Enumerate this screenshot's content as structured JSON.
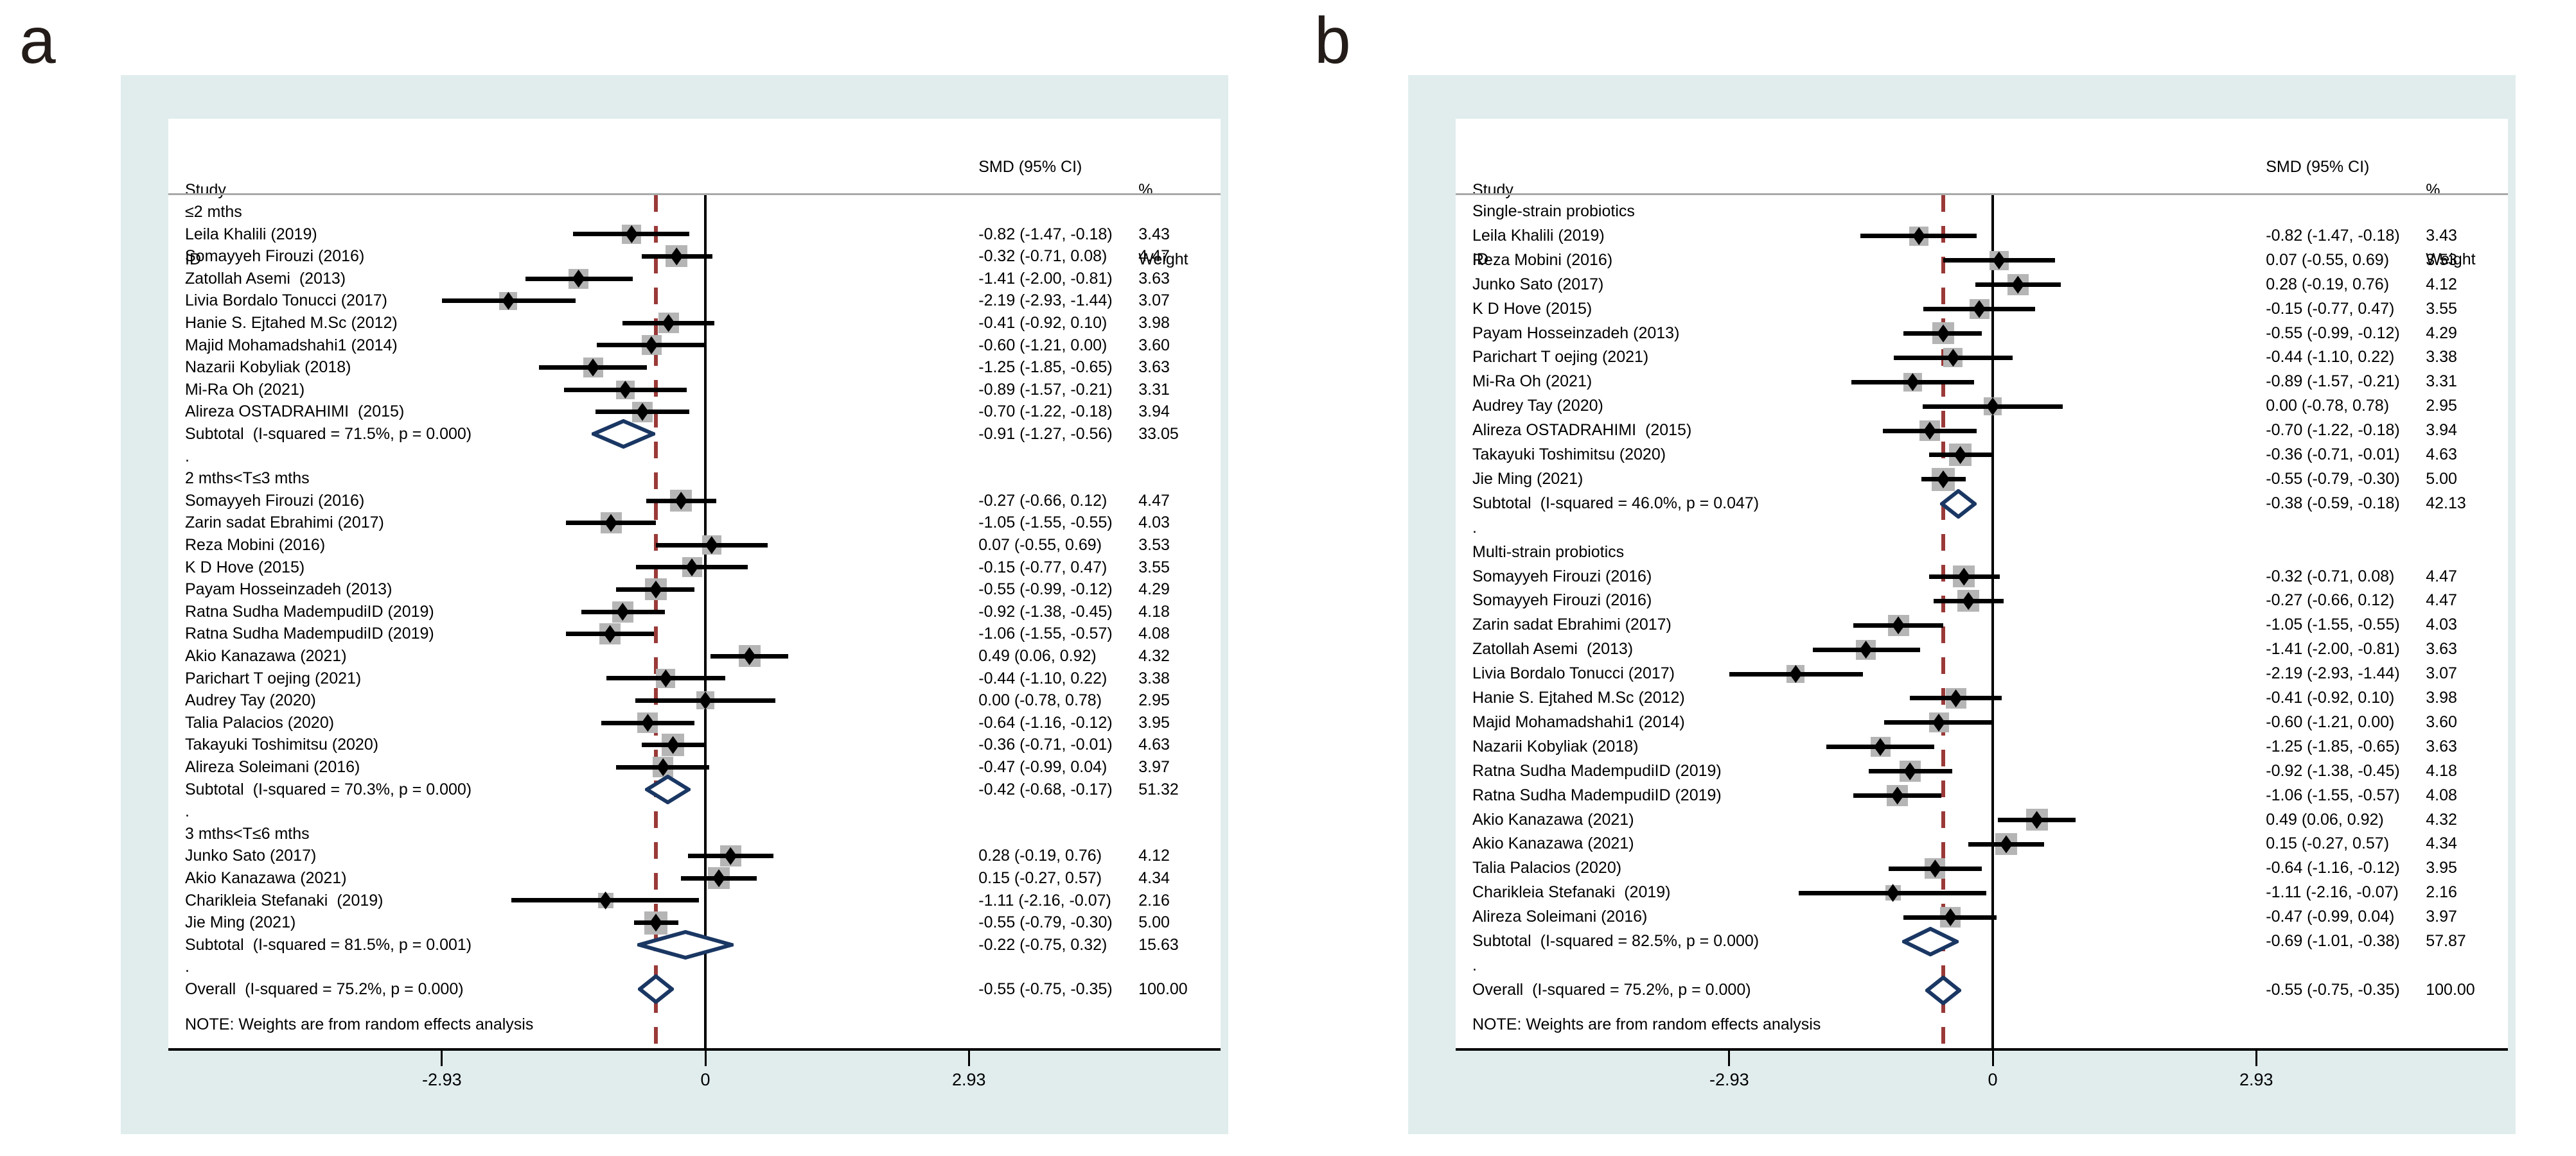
{
  "page": {
    "label_a": "a",
    "label_b": "b"
  },
  "colors": {
    "panel_background": "#e1eded",
    "plot_background": "#ffffff",
    "weight_box_gray": "#b5b5b5",
    "header_rule_gray": "#a9a9a9",
    "dashed_overall_line_red": "#9a3a38",
    "pooled_diamond_navy": "#1a3763",
    "text_black": "#000000"
  },
  "chart_data": {
    "type": "forest",
    "effect_measure": "SMD",
    "note": "NOTE: Weights are from random effects analysis",
    "columns": {
      "study_top": "Study",
      "study_bottom": "ID",
      "smd": "SMD (95% CI)",
      "weight_top": "%",
      "weight_bottom": "Weight"
    },
    "axis": {
      "ticks": [
        {
          "value": -2.93,
          "label": "-2.93"
        },
        {
          "value": 0,
          "label": "0"
        },
        {
          "value": 2.93,
          "label": "2.93"
        }
      ],
      "zero_line_at": 0,
      "dashed_line_at": -0.55
    },
    "panels": [
      {
        "id": "a",
        "rows": [
          {
            "type": "group",
            "label": "≤2 mths"
          },
          {
            "type": "study",
            "label": "Leila Khalili (2019)",
            "est": -0.82,
            "lo": -1.47,
            "hi": -0.18,
            "smd": "-0.82 (-1.47, -0.18)",
            "weight": "3.43",
            "w": 3.43
          },
          {
            "type": "study",
            "label": "Somayyeh Firouzi (2016)",
            "est": -0.32,
            "lo": -0.71,
            "hi": 0.08,
            "smd": "-0.32 (-0.71, 0.08)",
            "weight": "4.47",
            "w": 4.47
          },
          {
            "type": "study",
            "label": "Zatollah Asemi  (2013)",
            "est": -1.41,
            "lo": -2.0,
            "hi": -0.81,
            "smd": "-1.41 (-2.00, -0.81)",
            "weight": "3.63",
            "w": 3.63
          },
          {
            "type": "study",
            "label": "Livia Bordalo Tonucci (2017)",
            "est": -2.19,
            "lo": -2.93,
            "hi": -1.44,
            "smd": "-2.19 (-2.93, -1.44)",
            "weight": "3.07",
            "w": 3.07
          },
          {
            "type": "study",
            "label": "Hanie S. Ejtahed M.Sc (2012)",
            "est": -0.41,
            "lo": -0.92,
            "hi": 0.1,
            "smd": "-0.41 (-0.92, 0.10)",
            "weight": "3.98",
            "w": 3.98
          },
          {
            "type": "study",
            "label": "Majid Mohamadshahi1 (2014)",
            "est": -0.6,
            "lo": -1.21,
            "hi": 0.0,
            "smd": "-0.60 (-1.21, 0.00)",
            "weight": "3.60",
            "w": 3.6
          },
          {
            "type": "study",
            "label": "Nazarii Kobyliak (2018)",
            "est": -1.25,
            "lo": -1.85,
            "hi": -0.65,
            "smd": "-1.25 (-1.85, -0.65)",
            "weight": "3.63",
            "w": 3.63
          },
          {
            "type": "study",
            "label": "Mi-Ra Oh (2021)",
            "est": -0.89,
            "lo": -1.57,
            "hi": -0.21,
            "smd": "-0.89 (-1.57, -0.21)",
            "weight": "3.31",
            "w": 3.31
          },
          {
            "type": "study",
            "label": "Alireza OSTADRAHIMI  (2015)",
            "est": -0.7,
            "lo": -1.22,
            "hi": -0.18,
            "smd": "-0.70 (-1.22, -0.18)",
            "weight": "3.94",
            "w": 3.94
          },
          {
            "type": "subtotal",
            "label": "Subtotal  (I-squared = 71.5%, p = 0.000)",
            "est": -0.91,
            "lo": -1.27,
            "hi": -0.56,
            "smd": "-0.91 (-1.27, -0.56)",
            "weight": "33.05"
          },
          {
            "type": "dot"
          },
          {
            "type": "group",
            "label": "2 mths<T≤3 mths"
          },
          {
            "type": "study",
            "label": "Somayyeh Firouzi (2016)",
            "est": -0.27,
            "lo": -0.66,
            "hi": 0.12,
            "smd": "-0.27 (-0.66, 0.12)",
            "weight": "4.47",
            "w": 4.47
          },
          {
            "type": "study",
            "label": "Zarin sadat Ebrahimi (2017)",
            "est": -1.05,
            "lo": -1.55,
            "hi": -0.55,
            "smd": "-1.05 (-1.55, -0.55)",
            "weight": "4.03",
            "w": 4.03
          },
          {
            "type": "study",
            "label": "Reza Mobini (2016)",
            "est": 0.07,
            "lo": -0.55,
            "hi": 0.69,
            "smd": "0.07 (-0.55, 0.69)",
            "weight": "3.53",
            "w": 3.53
          },
          {
            "type": "study",
            "label": "K D Hove (2015)",
            "est": -0.15,
            "lo": -0.77,
            "hi": 0.47,
            "smd": "-0.15 (-0.77, 0.47)",
            "weight": "3.55",
            "w": 3.55
          },
          {
            "type": "study",
            "label": "Payam Hosseinzadeh (2013)",
            "est": -0.55,
            "lo": -0.99,
            "hi": -0.12,
            "smd": "-0.55 (-0.99, -0.12)",
            "weight": "4.29",
            "w": 4.29
          },
          {
            "type": "study",
            "label": "Ratna Sudha MadempudiID (2019)",
            "est": -0.92,
            "lo": -1.38,
            "hi": -0.45,
            "smd": "-0.92 (-1.38, -0.45)",
            "weight": "4.18",
            "w": 4.18
          },
          {
            "type": "study",
            "label": "Ratna Sudha MadempudiID (2019)",
            "est": -1.06,
            "lo": -1.55,
            "hi": -0.57,
            "smd": "-1.06 (-1.55, -0.57)",
            "weight": "4.08",
            "w": 4.08
          },
          {
            "type": "study",
            "label": "Akio Kanazawa (2021)",
            "est": 0.49,
            "lo": 0.06,
            "hi": 0.92,
            "smd": "0.49 (0.06, 0.92)",
            "weight": "4.32",
            "w": 4.32
          },
          {
            "type": "study",
            "label": "Parichart T oejing (2021)",
            "est": -0.44,
            "lo": -1.1,
            "hi": 0.22,
            "smd": "-0.44 (-1.10, 0.22)",
            "weight": "3.38",
            "w": 3.38
          },
          {
            "type": "study",
            "label": "Audrey Tay (2020)",
            "est": 0.0,
            "lo": -0.78,
            "hi": 0.78,
            "smd": "0.00 (-0.78, 0.78)",
            "weight": "2.95",
            "w": 2.95
          },
          {
            "type": "study",
            "label": "Talia Palacios (2020)",
            "est": -0.64,
            "lo": -1.16,
            "hi": -0.12,
            "smd": "-0.64 (-1.16, -0.12)",
            "weight": "3.95",
            "w": 3.95
          },
          {
            "type": "study",
            "label": "Takayuki Toshimitsu (2020)",
            "est": -0.36,
            "lo": -0.71,
            "hi": -0.01,
            "smd": "-0.36 (-0.71, -0.01)",
            "weight": "4.63",
            "w": 4.63
          },
          {
            "type": "study",
            "label": "Alireza Soleimani (2016)",
            "est": -0.47,
            "lo": -0.99,
            "hi": 0.04,
            "smd": "-0.47 (-0.99, 0.04)",
            "weight": "3.97",
            "w": 3.97
          },
          {
            "type": "subtotal",
            "label": "Subtotal  (I-squared = 70.3%, p = 0.000)",
            "est": -0.42,
            "lo": -0.68,
            "hi": -0.17,
            "smd": "-0.42 (-0.68, -0.17)",
            "weight": "51.32"
          },
          {
            "type": "dot"
          },
          {
            "type": "group",
            "label": "3 mths<T≤6 mths"
          },
          {
            "type": "study",
            "label": "Junko Sato (2017)",
            "est": 0.28,
            "lo": -0.19,
            "hi": 0.76,
            "smd": "0.28 (-0.19, 0.76)",
            "weight": "4.12",
            "w": 4.12
          },
          {
            "type": "study",
            "label": "Akio Kanazawa (2021)",
            "est": 0.15,
            "lo": -0.27,
            "hi": 0.57,
            "smd": "0.15 (-0.27, 0.57)",
            "weight": "4.34",
            "w": 4.34
          },
          {
            "type": "study",
            "label": "Charikleia Stefanaki  (2019)",
            "est": -1.11,
            "lo": -2.16,
            "hi": -0.07,
            "smd": "-1.11 (-2.16, -0.07)",
            "weight": "2.16",
            "w": 2.16
          },
          {
            "type": "study",
            "label": "Jie Ming (2021)",
            "est": -0.55,
            "lo": -0.79,
            "hi": -0.3,
            "smd": "-0.55 (-0.79, -0.30)",
            "weight": "5.00",
            "w": 5.0
          },
          {
            "type": "subtotal",
            "label": "Subtotal  (I-squared = 81.5%, p = 0.001)",
            "est": -0.22,
            "lo": -0.75,
            "hi": 0.32,
            "smd": "-0.22 (-0.75, 0.32)",
            "weight": "15.63"
          },
          {
            "type": "dot"
          },
          {
            "type": "overall",
            "label": "Overall  (I-squared = 75.2%, p = 0.000)",
            "est": -0.55,
            "lo": -0.75,
            "hi": -0.35,
            "smd": "-0.55 (-0.75, -0.35)",
            "weight": "100.00"
          }
        ]
      },
      {
        "id": "b",
        "rows": [
          {
            "type": "group",
            "label": "Single-strain probiotics"
          },
          {
            "type": "study",
            "label": "Leila Khalili (2019)",
            "est": -0.82,
            "lo": -1.47,
            "hi": -0.18,
            "smd": "-0.82 (-1.47, -0.18)",
            "weight": "3.43",
            "w": 3.43
          },
          {
            "type": "study",
            "label": "Reza Mobini (2016)",
            "est": 0.07,
            "lo": -0.55,
            "hi": 0.69,
            "smd": "0.07 (-0.55, 0.69)",
            "weight": "3.53",
            "w": 3.53
          },
          {
            "type": "study",
            "label": "Junko Sato (2017)",
            "est": 0.28,
            "lo": -0.19,
            "hi": 0.76,
            "smd": "0.28 (-0.19, 0.76)",
            "weight": "4.12",
            "w": 4.12
          },
          {
            "type": "study",
            "label": "K D Hove (2015)",
            "est": -0.15,
            "lo": -0.77,
            "hi": 0.47,
            "smd": "-0.15 (-0.77, 0.47)",
            "weight": "3.55",
            "w": 3.55
          },
          {
            "type": "study",
            "label": "Payam Hosseinzadeh (2013)",
            "est": -0.55,
            "lo": -0.99,
            "hi": -0.12,
            "smd": "-0.55 (-0.99, -0.12)",
            "weight": "4.29",
            "w": 4.29
          },
          {
            "type": "study",
            "label": "Parichart T oejing (2021)",
            "est": -0.44,
            "lo": -1.1,
            "hi": 0.22,
            "smd": "-0.44 (-1.10, 0.22)",
            "weight": "3.38",
            "w": 3.38
          },
          {
            "type": "study",
            "label": "Mi-Ra Oh (2021)",
            "est": -0.89,
            "lo": -1.57,
            "hi": -0.21,
            "smd": "-0.89 (-1.57, -0.21)",
            "weight": "3.31",
            "w": 3.31
          },
          {
            "type": "study",
            "label": "Audrey Tay (2020)",
            "est": 0.0,
            "lo": -0.78,
            "hi": 0.78,
            "smd": "0.00 (-0.78, 0.78)",
            "weight": "2.95",
            "w": 2.95
          },
          {
            "type": "study",
            "label": "Alireza OSTADRAHIMI  (2015)",
            "est": -0.7,
            "lo": -1.22,
            "hi": -0.18,
            "smd": "-0.70 (-1.22, -0.18)",
            "weight": "3.94",
            "w": 3.94
          },
          {
            "type": "study",
            "label": "Takayuki Toshimitsu (2020)",
            "est": -0.36,
            "lo": -0.71,
            "hi": -0.01,
            "smd": "-0.36 (-0.71, -0.01)",
            "weight": "4.63",
            "w": 4.63
          },
          {
            "type": "study",
            "label": "Jie Ming (2021)",
            "est": -0.55,
            "lo": -0.79,
            "hi": -0.3,
            "smd": "-0.55 (-0.79, -0.30)",
            "weight": "5.00",
            "w": 5.0
          },
          {
            "type": "subtotal",
            "label": "Subtotal  (I-squared = 46.0%, p = 0.047)",
            "est": -0.38,
            "lo": -0.59,
            "hi": -0.18,
            "smd": "-0.38 (-0.59, -0.18)",
            "weight": "42.13"
          },
          {
            "type": "dot"
          },
          {
            "type": "group",
            "label": "Multi-strain probiotics"
          },
          {
            "type": "study",
            "label": "Somayyeh Firouzi (2016)",
            "est": -0.32,
            "lo": -0.71,
            "hi": 0.08,
            "smd": "-0.32 (-0.71, 0.08)",
            "weight": "4.47",
            "w": 4.47
          },
          {
            "type": "study",
            "label": "Somayyeh Firouzi (2016)",
            "est": -0.27,
            "lo": -0.66,
            "hi": 0.12,
            "smd": "-0.27 (-0.66, 0.12)",
            "weight": "4.47",
            "w": 4.47
          },
          {
            "type": "study",
            "label": "Zarin sadat Ebrahimi (2017)",
            "est": -1.05,
            "lo": -1.55,
            "hi": -0.55,
            "smd": "-1.05 (-1.55, -0.55)",
            "weight": "4.03",
            "w": 4.03
          },
          {
            "type": "study",
            "label": "Zatollah Asemi  (2013)",
            "est": -1.41,
            "lo": -2.0,
            "hi": -0.81,
            "smd": "-1.41 (-2.00, -0.81)",
            "weight": "3.63",
            "w": 3.63
          },
          {
            "type": "study",
            "label": "Livia Bordalo Tonucci (2017)",
            "est": -2.19,
            "lo": -2.93,
            "hi": -1.44,
            "smd": "-2.19 (-2.93, -1.44)",
            "weight": "3.07",
            "w": 3.07
          },
          {
            "type": "study",
            "label": "Hanie S. Ejtahed M.Sc (2012)",
            "est": -0.41,
            "lo": -0.92,
            "hi": 0.1,
            "smd": "-0.41 (-0.92, 0.10)",
            "weight": "3.98",
            "w": 3.98
          },
          {
            "type": "study",
            "label": "Majid Mohamadshahi1 (2014)",
            "est": -0.6,
            "lo": -1.21,
            "hi": 0.0,
            "smd": "-0.60 (-1.21, 0.00)",
            "weight": "3.60",
            "w": 3.6
          },
          {
            "type": "study",
            "label": "Nazarii Kobyliak (2018)",
            "est": -1.25,
            "lo": -1.85,
            "hi": -0.65,
            "smd": "-1.25 (-1.85, -0.65)",
            "weight": "3.63",
            "w": 3.63
          },
          {
            "type": "study",
            "label": "Ratna Sudha MadempudiID (2019)",
            "est": -0.92,
            "lo": -1.38,
            "hi": -0.45,
            "smd": "-0.92 (-1.38, -0.45)",
            "weight": "4.18",
            "w": 4.18
          },
          {
            "type": "study",
            "label": "Ratna Sudha MadempudiID (2019)",
            "est": -1.06,
            "lo": -1.55,
            "hi": -0.57,
            "smd": "-1.06 (-1.55, -0.57)",
            "weight": "4.08",
            "w": 4.08
          },
          {
            "type": "study",
            "label": "Akio Kanazawa (2021)",
            "est": 0.49,
            "lo": 0.06,
            "hi": 0.92,
            "smd": "0.49 (0.06, 0.92)",
            "weight": "4.32",
            "w": 4.32
          },
          {
            "type": "study",
            "label": "Akio Kanazawa (2021)",
            "est": 0.15,
            "lo": -0.27,
            "hi": 0.57,
            "smd": "0.15 (-0.27, 0.57)",
            "weight": "4.34",
            "w": 4.34
          },
          {
            "type": "study",
            "label": "Talia Palacios (2020)",
            "est": -0.64,
            "lo": -1.16,
            "hi": -0.12,
            "smd": "-0.64 (-1.16, -0.12)",
            "weight": "3.95",
            "w": 3.95
          },
          {
            "type": "study",
            "label": "Charikleia Stefanaki  (2019)",
            "est": -1.11,
            "lo": -2.16,
            "hi": -0.07,
            "smd": "-1.11 (-2.16, -0.07)",
            "weight": "2.16",
            "w": 2.16
          },
          {
            "type": "study",
            "label": "Alireza Soleimani (2016)",
            "est": -0.47,
            "lo": -0.99,
            "hi": 0.04,
            "smd": "-0.47 (-0.99, 0.04)",
            "weight": "3.97",
            "w": 3.97
          },
          {
            "type": "subtotal",
            "label": "Subtotal  (I-squared = 82.5%, p = 0.000)",
            "est": -0.69,
            "lo": -1.01,
            "hi": -0.38,
            "smd": "-0.69 (-1.01, -0.38)",
            "weight": "57.87"
          },
          {
            "type": "dot"
          },
          {
            "type": "overall",
            "label": "Overall  (I-squared = 75.2%, p = 0.000)",
            "est": -0.55,
            "lo": -0.75,
            "hi": -0.35,
            "smd": "-0.55 (-0.75, -0.35)",
            "weight": "100.00"
          }
        ]
      }
    ]
  }
}
